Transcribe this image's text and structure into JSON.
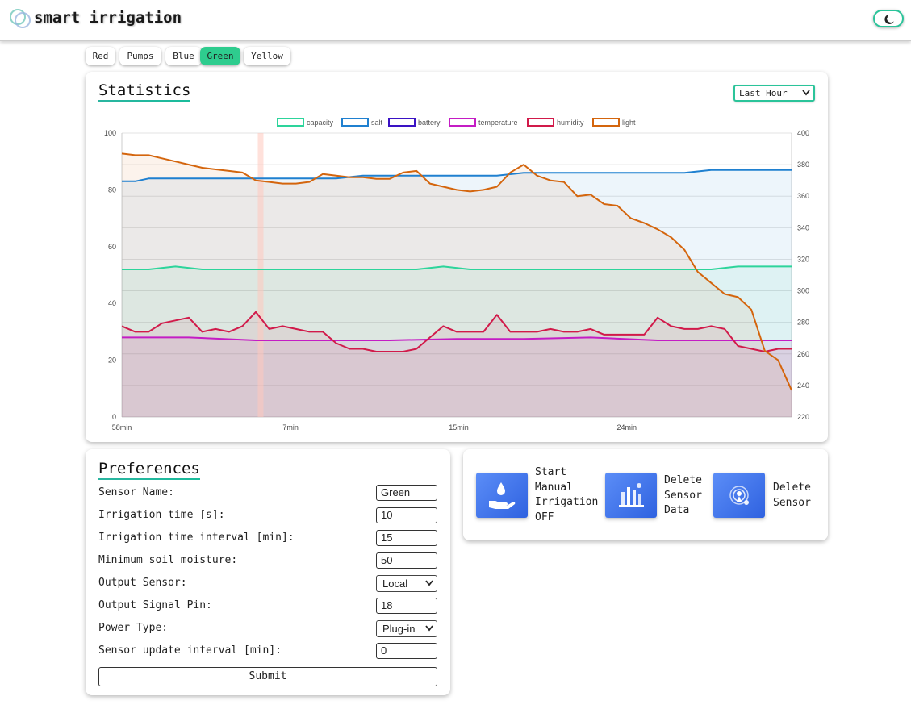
{
  "app": {
    "title": "smart irrigation"
  },
  "tabs": [
    {
      "label": "Red",
      "active": false
    },
    {
      "label": "Pumps",
      "active": false
    },
    {
      "label": "Blue",
      "active": false
    },
    {
      "label": "Green",
      "active": true
    },
    {
      "label": "Yellow",
      "active": false
    }
  ],
  "statistics": {
    "title": "Statistics",
    "range_select": "Last Hour"
  },
  "chart_data": {
    "type": "line",
    "title": "",
    "legend_position": "top",
    "x_ticks": [
      "58min",
      "7min",
      "15min",
      "24min"
    ],
    "y_left": {
      "ticks": [
        "0",
        "20",
        "40",
        "60",
        "80",
        "100"
      ],
      "range": [
        0,
        100
      ]
    },
    "y_right": {
      "ticks": [
        "220",
        "240",
        "260",
        "280",
        "300",
        "320",
        "340",
        "360",
        "380",
        "400"
      ],
      "range": [
        220,
        400
      ]
    },
    "grid": true,
    "series": [
      {
        "name": "capacity",
        "color": "#2dd49b",
        "axis": "left",
        "hidden": false,
        "points": [
          [
            0,
            52
          ],
          [
            4,
            52
          ],
          [
            8,
            53
          ],
          [
            12,
            52
          ],
          [
            16,
            52
          ],
          [
            20,
            52
          ],
          [
            24,
            52
          ],
          [
            28,
            52
          ],
          [
            32,
            52
          ],
          [
            36,
            52
          ],
          [
            40,
            52
          ],
          [
            44,
            52
          ],
          [
            48,
            53
          ],
          [
            52,
            52
          ],
          [
            56,
            52
          ],
          [
            60,
            52
          ],
          [
            64,
            52
          ],
          [
            68,
            52
          ],
          [
            72,
            52
          ],
          [
            76,
            52
          ],
          [
            80,
            52
          ],
          [
            84,
            52
          ],
          [
            88,
            52
          ],
          [
            92,
            53
          ],
          [
            96,
            53
          ],
          [
            100,
            53
          ]
        ]
      },
      {
        "name": "salt",
        "color": "#1f80d0",
        "axis": "left",
        "hidden": false,
        "points": [
          [
            0,
            83
          ],
          [
            2,
            83
          ],
          [
            4,
            84
          ],
          [
            8,
            84
          ],
          [
            12,
            84
          ],
          [
            16,
            84
          ],
          [
            20,
            84
          ],
          [
            24,
            84
          ],
          [
            28,
            84
          ],
          [
            32,
            84
          ],
          [
            36,
            85
          ],
          [
            40,
            85
          ],
          [
            44,
            85
          ],
          [
            48,
            85
          ],
          [
            52,
            85
          ],
          [
            56,
            85
          ],
          [
            60,
            86
          ],
          [
            64,
            86
          ],
          [
            68,
            86
          ],
          [
            72,
            86
          ],
          [
            76,
            86
          ],
          [
            80,
            86
          ],
          [
            84,
            86
          ],
          [
            88,
            87
          ],
          [
            92,
            87
          ],
          [
            96,
            87
          ],
          [
            100,
            87
          ]
        ]
      },
      {
        "name": "battery",
        "color": "#3a12c4",
        "axis": "left",
        "hidden": true,
        "points": []
      },
      {
        "name": "temperature",
        "color": "#c41cc4",
        "axis": "left",
        "hidden": false,
        "points": [
          [
            0,
            28
          ],
          [
            10,
            28
          ],
          [
            20,
            27
          ],
          [
            30,
            27
          ],
          [
            40,
            27
          ],
          [
            50,
            27.5
          ],
          [
            60,
            27.5
          ],
          [
            70,
            28
          ],
          [
            80,
            27
          ],
          [
            90,
            27
          ],
          [
            100,
            27
          ]
        ]
      },
      {
        "name": "humidity",
        "color": "#d11a4a",
        "axis": "left",
        "hidden": false,
        "points": [
          [
            0,
            32
          ],
          [
            2,
            30
          ],
          [
            4,
            30
          ],
          [
            6,
            33
          ],
          [
            8,
            34
          ],
          [
            10,
            35
          ],
          [
            12,
            30
          ],
          [
            14,
            31
          ],
          [
            16,
            30
          ],
          [
            18,
            32
          ],
          [
            20,
            37
          ],
          [
            22,
            31
          ],
          [
            24,
            32
          ],
          [
            26,
            31
          ],
          [
            28,
            30
          ],
          [
            30,
            30
          ],
          [
            32,
            26
          ],
          [
            34,
            24
          ],
          [
            36,
            24
          ],
          [
            38,
            23
          ],
          [
            40,
            23
          ],
          [
            42,
            23
          ],
          [
            44,
            24
          ],
          [
            46,
            28
          ],
          [
            48,
            32
          ],
          [
            50,
            30
          ],
          [
            52,
            30
          ],
          [
            54,
            30
          ],
          [
            56,
            36
          ],
          [
            58,
            30
          ],
          [
            60,
            30
          ],
          [
            62,
            30
          ],
          [
            64,
            31
          ],
          [
            66,
            30
          ],
          [
            68,
            30
          ],
          [
            70,
            31
          ],
          [
            72,
            29
          ],
          [
            74,
            29
          ],
          [
            76,
            29
          ],
          [
            78,
            29
          ],
          [
            80,
            35
          ],
          [
            82,
            32
          ],
          [
            84,
            31
          ],
          [
            86,
            31
          ],
          [
            88,
            32
          ],
          [
            90,
            31
          ],
          [
            92,
            25
          ],
          [
            94,
            24
          ],
          [
            96,
            23
          ],
          [
            98,
            24
          ],
          [
            100,
            24
          ]
        ]
      },
      {
        "name": "light",
        "color": "#d4650d",
        "axis": "right",
        "hidden": false,
        "points": [
          [
            0,
            387
          ],
          [
            2,
            386
          ],
          [
            4,
            386
          ],
          [
            6,
            384
          ],
          [
            8,
            382
          ],
          [
            10,
            380
          ],
          [
            12,
            378
          ],
          [
            14,
            377
          ],
          [
            16,
            376
          ],
          [
            18,
            375
          ],
          [
            20,
            370
          ],
          [
            22,
            369
          ],
          [
            24,
            368
          ],
          [
            26,
            368
          ],
          [
            28,
            369
          ],
          [
            30,
            374
          ],
          [
            32,
            373
          ],
          [
            34,
            372
          ],
          [
            36,
            372
          ],
          [
            38,
            371
          ],
          [
            40,
            371
          ],
          [
            42,
            375
          ],
          [
            44,
            376
          ],
          [
            46,
            368
          ],
          [
            48,
            366
          ],
          [
            50,
            364
          ],
          [
            52,
            363
          ],
          [
            54,
            364
          ],
          [
            56,
            366
          ],
          [
            58,
            375
          ],
          [
            60,
            380
          ],
          [
            62,
            373
          ],
          [
            64,
            370
          ],
          [
            66,
            369
          ],
          [
            68,
            360
          ],
          [
            70,
            361
          ],
          [
            72,
            355
          ],
          [
            74,
            354
          ],
          [
            76,
            346
          ],
          [
            78,
            343
          ],
          [
            80,
            339
          ],
          [
            82,
            334
          ],
          [
            84,
            326
          ],
          [
            86,
            312
          ],
          [
            88,
            305
          ],
          [
            90,
            298
          ],
          [
            92,
            296
          ],
          [
            94,
            288
          ],
          [
            96,
            262
          ],
          [
            98,
            256
          ],
          [
            100,
            237
          ]
        ]
      }
    ]
  },
  "preferences": {
    "title": "Preferences",
    "rows": [
      {
        "label": "Sensor Name:",
        "value": "Green",
        "kind": "input"
      },
      {
        "label": "Irrigation time [s]:",
        "value": "10",
        "kind": "input"
      },
      {
        "label": "Irrigation time interval [min]:",
        "value": "15",
        "kind": "input"
      },
      {
        "label": "Minimum soil moisture:",
        "value": "50",
        "kind": "input"
      },
      {
        "label": "Output Sensor:",
        "value": "Local",
        "kind": "select"
      },
      {
        "label": "Output Signal Pin:",
        "value": "18",
        "kind": "input"
      },
      {
        "label": "Power Type:",
        "value": "Plug-in",
        "kind": "select"
      },
      {
        "label": "Sensor update interval [min]:",
        "value": "0",
        "kind": "input"
      }
    ],
    "submit_label": "Submit"
  },
  "actions": [
    {
      "lines": [
        "Start",
        "Manual",
        "Irrigation",
        "OFF"
      ],
      "icon": "water-hand-icon"
    },
    {
      "lines": [
        "Delete",
        "Sensor",
        "Data"
      ],
      "icon": "bar-chart-icon"
    },
    {
      "lines": [
        "Delete",
        "Sensor"
      ],
      "icon": "sensor-icon"
    }
  ],
  "colors": {
    "accent": "#2ecc8e",
    "action_blue": "#3f73ec"
  }
}
